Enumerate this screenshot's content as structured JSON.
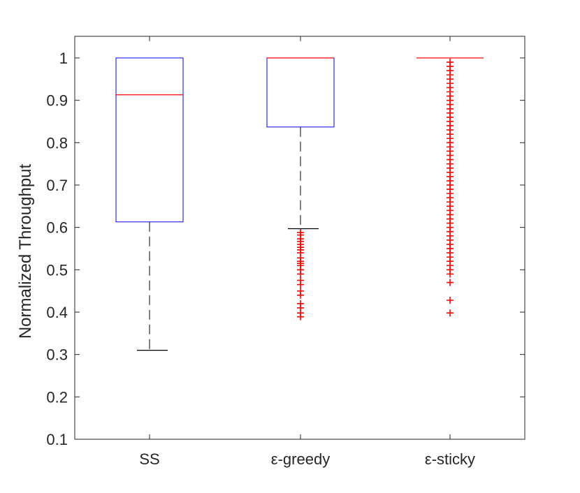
{
  "chart_data": {
    "type": "box",
    "ylabel": "Normalized Throughput",
    "xlabel": "",
    "title": "",
    "ylim": [
      0.1,
      1.05
    ],
    "yticks": [
      0.1,
      0.2,
      0.3,
      0.4,
      0.5,
      0.6,
      0.7,
      0.8,
      0.9,
      1
    ],
    "ytick_labels": [
      "0.1",
      "0.2",
      "0.3",
      "0.4",
      "0.5",
      "0.6",
      "0.7",
      "0.8",
      "0.9",
      "1"
    ],
    "grid": false,
    "categories": [
      "SS",
      "ε-greedy",
      "ε-sticky"
    ],
    "boxes": [
      {
        "category": "SS",
        "whisker_low": 0.31,
        "q1": 0.613,
        "median": 0.913,
        "q3": 1.0,
        "whisker_high": 1.0,
        "outliers": []
      },
      {
        "category": "ε-greedy",
        "whisker_low": 0.597,
        "q1": 0.837,
        "median": 1.0,
        "q3": 1.0,
        "whisker_high": 1.0,
        "outliers": [
          0.389,
          0.398,
          0.41,
          0.42,
          0.44,
          0.45,
          0.465,
          0.475,
          0.49,
          0.5,
          0.51,
          0.515,
          0.52,
          0.528,
          0.54,
          0.547,
          0.553,
          0.56,
          0.567,
          0.573,
          0.582,
          0.588
        ]
      },
      {
        "category": "ε-sticky",
        "whisker_low": 1.0,
        "q1": 1.0,
        "median": 1.0,
        "q3": 1.0,
        "whisker_high": 1.0,
        "outliers": [
          0.398,
          0.428,
          0.47,
          0.49,
          0.5,
          0.51,
          0.52,
          0.53,
          0.54,
          0.55,
          0.56,
          0.57,
          0.58,
          0.59,
          0.6,
          0.61,
          0.62,
          0.63,
          0.64,
          0.65,
          0.66,
          0.67,
          0.68,
          0.69,
          0.7,
          0.71,
          0.72,
          0.73,
          0.74,
          0.75,
          0.76,
          0.77,
          0.78,
          0.79,
          0.8,
          0.81,
          0.82,
          0.83,
          0.84,
          0.85,
          0.86,
          0.87,
          0.88,
          0.89,
          0.9,
          0.91,
          0.92,
          0.93,
          0.94,
          0.95,
          0.96,
          0.97,
          0.98,
          0.99
        ]
      }
    ]
  },
  "colors": {
    "box": "#0000ff",
    "median": "#ff0000",
    "outlier": "#ff0000",
    "whisker": "#000000",
    "axis": "#262626"
  }
}
